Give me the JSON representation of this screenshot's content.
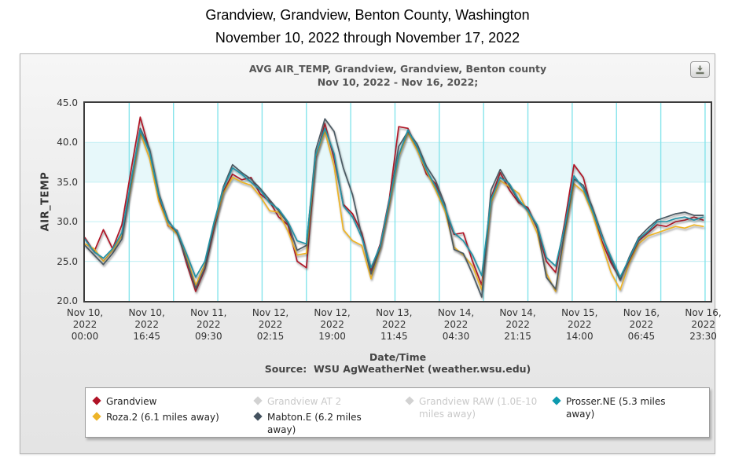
{
  "page": {
    "title": "Grandview, Grandview, Benton County, Washington",
    "subtitle": "November 10, 2022 through November 17, 2022"
  },
  "panel": {
    "export_icon": "download-icon"
  },
  "chart_data": {
    "type": "line",
    "title": "AVG AIR_TEMP, Grandview, Grandview, Benton county",
    "subtitle": "Nov 10, 2022 - Nov 16, 2022;",
    "ylabel": "AIR_TEMP",
    "xlabel": "Date/Time",
    "source": "Source:  WSU AgWeatherNet (weather.wsu.edu)",
    "ylim": [
      20,
      45
    ],
    "yticks": [
      "45.0",
      "40.0",
      "35.0",
      "30.0",
      "25.0",
      "20.0"
    ],
    "x_axis_max_hours": 169.5,
    "grid": {
      "vertical_every_hours": 12,
      "vertical_max_hours": 168,
      "horizontal_at": [
        25,
        30,
        35,
        40
      ]
    },
    "plot_band": {
      "from": 35,
      "to": 40,
      "color": "#E7F8FA"
    },
    "colors": {
      "grid_vertical": "#86E4EB",
      "grid_horizontal": "#C9F1F5",
      "plot_border": "#3C3C3C",
      "disabled_text": "#C9C9C9"
    },
    "xticks": [
      {
        "hour": 0,
        "lines": [
          "Nov 10,",
          "2022",
          "00:00"
        ]
      },
      {
        "hour": 16.75,
        "lines": [
          "Nov 10,",
          "2022",
          "16:45"
        ]
      },
      {
        "hour": 33.5,
        "lines": [
          "Nov 11,",
          "2022",
          "09:30"
        ]
      },
      {
        "hour": 50.25,
        "lines": [
          "Nov 12,",
          "2022",
          "02:15"
        ]
      },
      {
        "hour": 67,
        "lines": [
          "Nov 12,",
          "2022",
          "19:00"
        ]
      },
      {
        "hour": 83.75,
        "lines": [
          "Nov 13,",
          "2022",
          "11:45"
        ]
      },
      {
        "hour": 100.5,
        "lines": [
          "Nov 14,",
          "2022",
          "04:30"
        ]
      },
      {
        "hour": 117.25,
        "lines": [
          "Nov 14,",
          "2022",
          "21:15"
        ]
      },
      {
        "hour": 134,
        "lines": [
          "Nov 15,",
          "2022",
          "14:00"
        ]
      },
      {
        "hour": 150.75,
        "lines": [
          "Nov 16,",
          "2022",
          "06:45"
        ]
      },
      {
        "hour": 167.5,
        "lines": [
          "Nov 16,",
          "2022",
          "23:30"
        ]
      }
    ],
    "x_hours": [
      0,
      2.5,
      5,
      7.5,
      10,
      12.5,
      15,
      17.5,
      20,
      22.5,
      25,
      27.5,
      30,
      32.5,
      35,
      37.5,
      40,
      42.5,
      45,
      47.5,
      50,
      52.5,
      55,
      57.5,
      60,
      62.5,
      65,
      67.5,
      70,
      72.5,
      75,
      77.5,
      80,
      82.5,
      85,
      87.5,
      90,
      92.5,
      95,
      97.5,
      100,
      102.5,
      105,
      107.5,
      110,
      112.5,
      115,
      117.5,
      120,
      122.5,
      125,
      127.5,
      130,
      132.5,
      135,
      137.5,
      140,
      142.5,
      145,
      147.5,
      150,
      152.5,
      155,
      157.5,
      160,
      162.5,
      165,
      167.5
    ],
    "series": [
      {
        "name": "Grandview",
        "color": "#B01226",
        "values": [
          28.0,
          26.2,
          29.0,
          26.6,
          29.6,
          36.5,
          43.2,
          39.0,
          33.2,
          29.5,
          28.9,
          24.8,
          21.2,
          24.0,
          29.2,
          33.8,
          36.0,
          35.3,
          35.6,
          33.5,
          32.6,
          30.6,
          29.6,
          25.0,
          24.2,
          38.0,
          42.4,
          38.0,
          32.2,
          31.0,
          28.6,
          23.8,
          27.2,
          33.0,
          42.0,
          41.8,
          39.2,
          36.0,
          34.8,
          31.6,
          28.4,
          28.6,
          25.0,
          22.0,
          33.0,
          36.2,
          34.0,
          32.4,
          31.8,
          29.2,
          25.0,
          23.6,
          30.0,
          37.2,
          35.6,
          31.2,
          27.6,
          24.8,
          22.8,
          25.2,
          27.6,
          28.6,
          29.6,
          29.4,
          30.0,
          30.2,
          30.6,
          30.2
        ]
      },
      {
        "name": "Roza.2 (6.1 miles away)",
        "color": "#EDB428",
        "values": [
          27.2,
          26.6,
          25.0,
          26.4,
          28.2,
          34.5,
          41.2,
          38.0,
          32.6,
          29.6,
          28.4,
          25.6,
          22.0,
          24.6,
          29.6,
          33.6,
          35.6,
          35.0,
          34.6,
          33.2,
          31.4,
          31.2,
          28.8,
          25.8,
          26.0,
          38.2,
          41.4,
          37.0,
          29.0,
          27.6,
          27.0,
          22.8,
          26.6,
          32.2,
          38.2,
          41.2,
          39.0,
          36.4,
          34.0,
          31.4,
          26.8,
          25.8,
          24.4,
          21.4,
          32.4,
          35.2,
          34.4,
          33.6,
          31.2,
          28.6,
          23.5,
          21.2,
          28.5,
          34.8,
          33.8,
          31.0,
          27.2,
          23.6,
          21.4,
          24.8,
          27.2,
          28.2,
          28.6,
          29.0,
          29.4,
          29.2,
          29.6,
          29.4
        ]
      },
      {
        "name": "Mabton.E (6.2 miles away)",
        "color": "#4C5A64",
        "values": [
          27.0,
          25.8,
          24.6,
          26.0,
          27.8,
          35.0,
          41.8,
          39.2,
          33.6,
          30.2,
          28.6,
          25.2,
          21.6,
          24.2,
          29.8,
          34.4,
          37.2,
          36.2,
          35.4,
          34.2,
          32.8,
          31.4,
          29.8,
          26.4,
          27.0,
          39.0,
          43.0,
          41.4,
          36.8,
          33.4,
          28.2,
          23.4,
          26.8,
          32.6,
          39.5,
          41.4,
          39.8,
          37.0,
          35.2,
          32.2,
          26.5,
          26.0,
          23.4,
          20.5,
          34.0,
          36.6,
          34.6,
          32.6,
          31.6,
          29.4,
          23.0,
          21.5,
          29.0,
          35.4,
          34.6,
          31.8,
          28.4,
          25.2,
          22.6,
          25.6,
          28.0,
          29.2,
          30.2,
          30.6,
          31.0,
          31.2,
          30.8,
          30.8
        ]
      },
      {
        "name": "Prosser.NE (5.3 miles away)",
        "color": "#2192A5",
        "values": [
          27.8,
          26.2,
          25.4,
          26.6,
          28.6,
          35.2,
          41.6,
          38.8,
          33.4,
          30.0,
          28.8,
          26.0,
          23.0,
          25.0,
          30.0,
          34.2,
          36.8,
          36.0,
          35.0,
          34.0,
          32.4,
          31.6,
          30.0,
          27.6,
          27.2,
          38.4,
          41.8,
          38.6,
          32.0,
          30.6,
          28.0,
          24.2,
          27.0,
          32.8,
          38.4,
          41.6,
          39.4,
          36.6,
          34.4,
          31.8,
          28.6,
          27.6,
          25.8,
          23.2,
          32.8,
          35.6,
          34.8,
          32.8,
          31.4,
          29.6,
          25.5,
          24.4,
          29.5,
          35.8,
          34.2,
          31.4,
          28.2,
          25.6,
          23.0,
          25.4,
          27.8,
          28.8,
          30.0,
          30.0,
          30.4,
          30.6,
          30.2,
          30.6
        ]
      }
    ],
    "legend": [
      {
        "label": "Grandview",
        "color": "#B01226",
        "enabled": true,
        "col": 0
      },
      {
        "label": "Roza.2 (6.1 miles away)",
        "color": "#EDB428",
        "enabled": true,
        "col": 0
      },
      {
        "label": "Grandview AT 2",
        "color": "#D2D2D2",
        "enabled": false,
        "col": 1
      },
      {
        "label": "Mabton.E (6.2 miles away)",
        "color": "#44525F",
        "enabled": true,
        "col": 1
      },
      {
        "label": "Grandview RAW (1.0E-10 miles away)",
        "color": "#D2D2D2",
        "enabled": false,
        "col": 2
      },
      {
        "label": "Prosser.NE (5.3 miles away)",
        "color": "#0D9AAE",
        "enabled": true,
        "col": 3
      }
    ]
  }
}
